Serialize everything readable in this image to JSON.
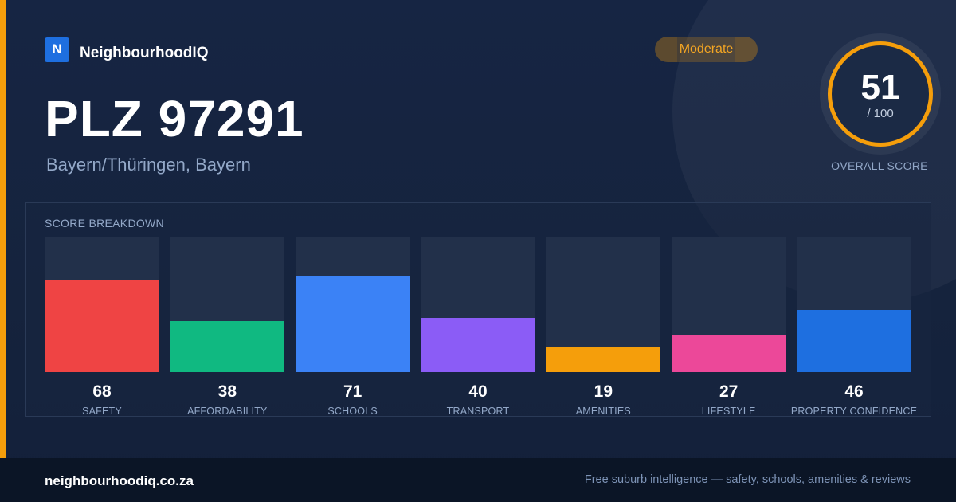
{
  "brand": {
    "logo_letter": "N",
    "name": "NeighbourhoodIQ"
  },
  "badge": {
    "label": "Moderate"
  },
  "header": {
    "title": "PLZ 97291",
    "subtitle": "Bayern/Thüringen, Bayern"
  },
  "overall_score": {
    "value": "51",
    "max_label": "/ 100",
    "caption": "OVERALL SCORE",
    "ring_color": "#f59e0b"
  },
  "breakdown": {
    "heading": "SCORE BREAKDOWN",
    "items": [
      {
        "label": "SAFETY",
        "value": 68,
        "display": "68",
        "color": "#ef4444"
      },
      {
        "label": "AFFORDABILITY",
        "value": 38,
        "display": "38",
        "color": "#10b981"
      },
      {
        "label": "SCHOOLS",
        "value": 71,
        "display": "71",
        "color": "#3b82f6"
      },
      {
        "label": "TRANSPORT",
        "value": 40,
        "display": "40",
        "color": "#8b5cf6"
      },
      {
        "label": "AMENITIES",
        "value": 19,
        "display": "19",
        "color": "#f59e0b"
      },
      {
        "label": "LIFESTYLE",
        "value": 27,
        "display": "27",
        "color": "#ec4899"
      },
      {
        "label": "PROPERTY CONFIDENCE",
        "value": 46,
        "display": "46",
        "color": "#1e6fe0"
      }
    ]
  },
  "footer": {
    "site": "neighbourhoodiq.co.za",
    "tagline": "Free suburb intelligence — safety, schools, amenities & reviews"
  },
  "colors": {
    "accent": "#f59e0b",
    "background": "#162543",
    "footer": "#0b1526"
  }
}
